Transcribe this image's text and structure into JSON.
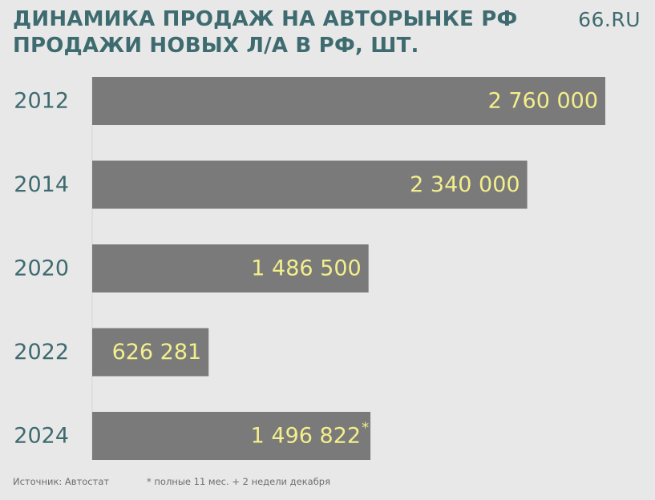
{
  "header": {
    "title_line1": "ДИНАМИКА ПРОДАЖ НА АВТОРЫНКЕ РФ",
    "title_line2": "ПРОДАЖИ НОВЫХ Л/А В РФ, ШТ.",
    "brand": "66.RU"
  },
  "footer": {
    "source": "Источник: Автостат",
    "footnote": "* полные 11 мес. + 2 недели декабря"
  },
  "colors": {
    "background": "#e8e8e8",
    "bar": "#7a7a7a",
    "value_label": "#f3ef8c",
    "category_label": "#3e6b6f",
    "title": "#3e6b6f"
  },
  "chart_data": {
    "type": "bar",
    "orientation": "horizontal",
    "title": "ДИНАМИКА ПРОДАЖ НА АВТОРЫНКЕ РФ",
    "subtitle": "ПРОДАЖИ НОВЫХ Л/А В РФ, ШТ.",
    "categories": [
      "2012",
      "2014",
      "2020",
      "2022",
      "2024"
    ],
    "values": [
      2760000,
      2340000,
      1486500,
      626281,
      1496822
    ],
    "value_labels": [
      "2 760 000",
      "2 340 000",
      "1 486 500",
      "626 281",
      "1 496 822"
    ],
    "value_label_marks": [
      "",
      "",
      "",
      "",
      "*"
    ],
    "xlabel": "",
    "ylabel": "",
    "xlim": [
      0,
      2760000
    ],
    "grid": false,
    "legend": "none"
  }
}
